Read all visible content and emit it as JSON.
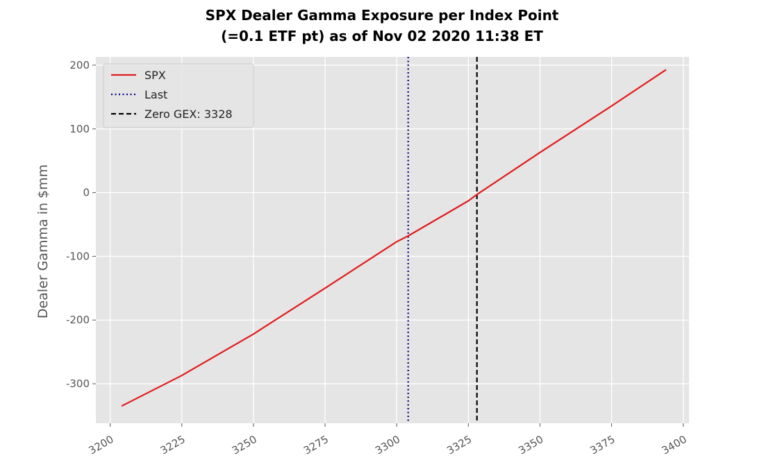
{
  "chart_data": {
    "type": "line",
    "title": [
      "SPX Dealer Gamma Exposure per Index Point",
      "(=0.1 ETF pt) as of Nov 02 2020 11:38 ET"
    ],
    "xlabel": "",
    "ylabel": "Dealer Gamma in $mm",
    "xlim": [
      3195,
      3402
    ],
    "ylim": [
      -362,
      213
    ],
    "xticks": [
      3200,
      3225,
      3250,
      3275,
      3300,
      3325,
      3350,
      3375,
      3400
    ],
    "xtick_labels": [
      "3200",
      "3225",
      "3250",
      "3275",
      "3300",
      "3325",
      "3350",
      "3375",
      "3400"
    ],
    "yticks": [
      200,
      100,
      0,
      -100,
      -200,
      -300
    ],
    "ytick_labels": [
      "200",
      "100",
      "0",
      "-100",
      "-200",
      "-300"
    ],
    "grid": true,
    "legend_position": "top-left",
    "series": [
      {
        "name": "SPX",
        "color": "#e31a1c",
        "style": "solid",
        "x": [
          3204,
          3225,
          3250,
          3275,
          3300,
          3304,
          3325,
          3328,
          3350,
          3375,
          3394
        ],
        "y": [
          -335,
          -287,
          -222,
          -150,
          -77,
          -68,
          -13,
          -3,
          63,
          136,
          193
        ]
      }
    ],
    "vlines": [
      {
        "name": "Last",
        "x": 3304,
        "color": "#000080",
        "style": "dotted"
      },
      {
        "name": "Zero GEX: 3328",
        "x": 3328,
        "color": "#000000",
        "style": "dashed"
      }
    ],
    "legend": [
      {
        "label": "SPX",
        "color": "#e31a1c",
        "style": "solid"
      },
      {
        "label": "Last",
        "color": "#000080",
        "style": "dotted"
      },
      {
        "label": "Zero GEX: 3328",
        "color": "#000000",
        "style": "dashed"
      }
    ]
  }
}
